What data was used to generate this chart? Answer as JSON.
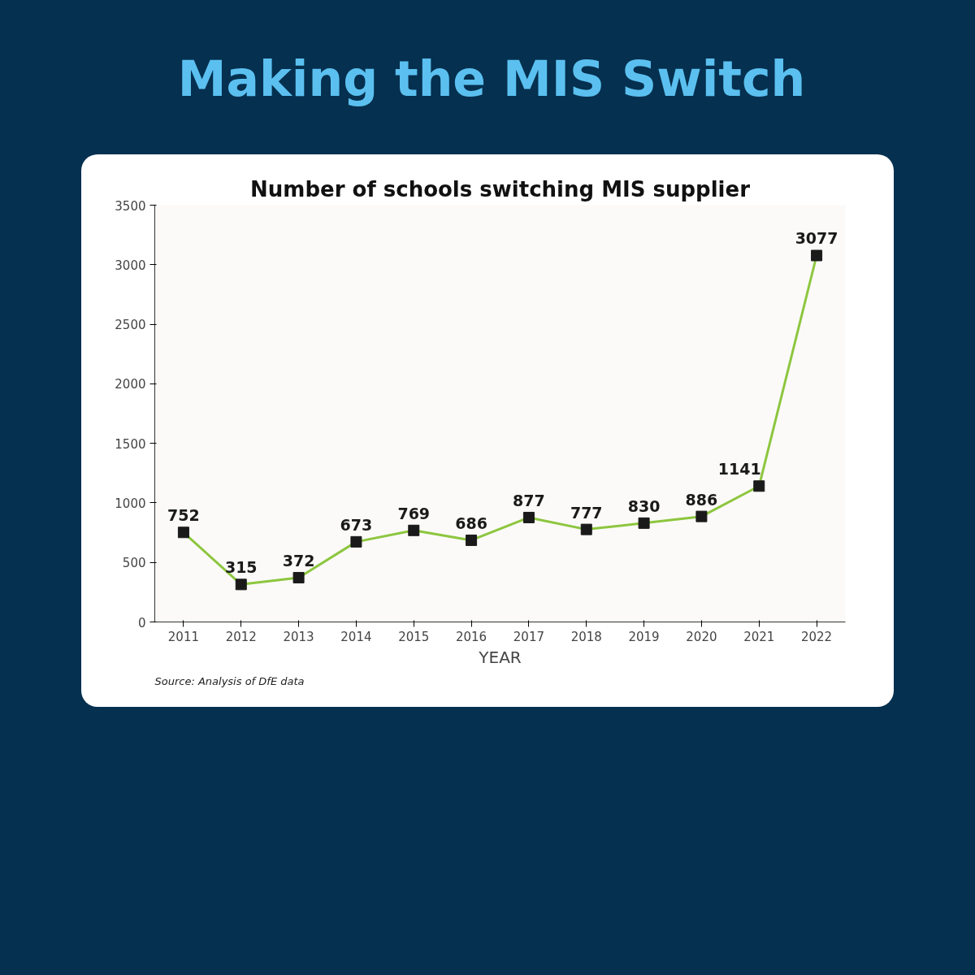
{
  "chart_data": {
    "type": "line",
    "title": "Making the MIS Switch",
    "subtitle": "Number of schools switching MIS supplier",
    "xlabel": "YEAR",
    "categories": [
      "2011",
      "2012",
      "2013",
      "2014",
      "2015",
      "2016",
      "2017",
      "2018",
      "2019",
      "2020",
      "2021",
      "2022"
    ],
    "series": [
      {
        "color": "#8dc63f",
        "values": [
          752,
          315,
          372,
          673,
          769,
          686,
          877,
          777,
          830,
          886,
          1141,
          3077
        ]
      }
    ],
    "ylim": [
      0,
      3500
    ],
    "yticks": [
      0,
      500,
      1000,
      1500,
      2000,
      2500,
      3000,
      3500
    ],
    "marker": "square",
    "data_labels": true,
    "grid": false,
    "annotations": [
      "Source: Analysis of DfE data"
    ]
  }
}
